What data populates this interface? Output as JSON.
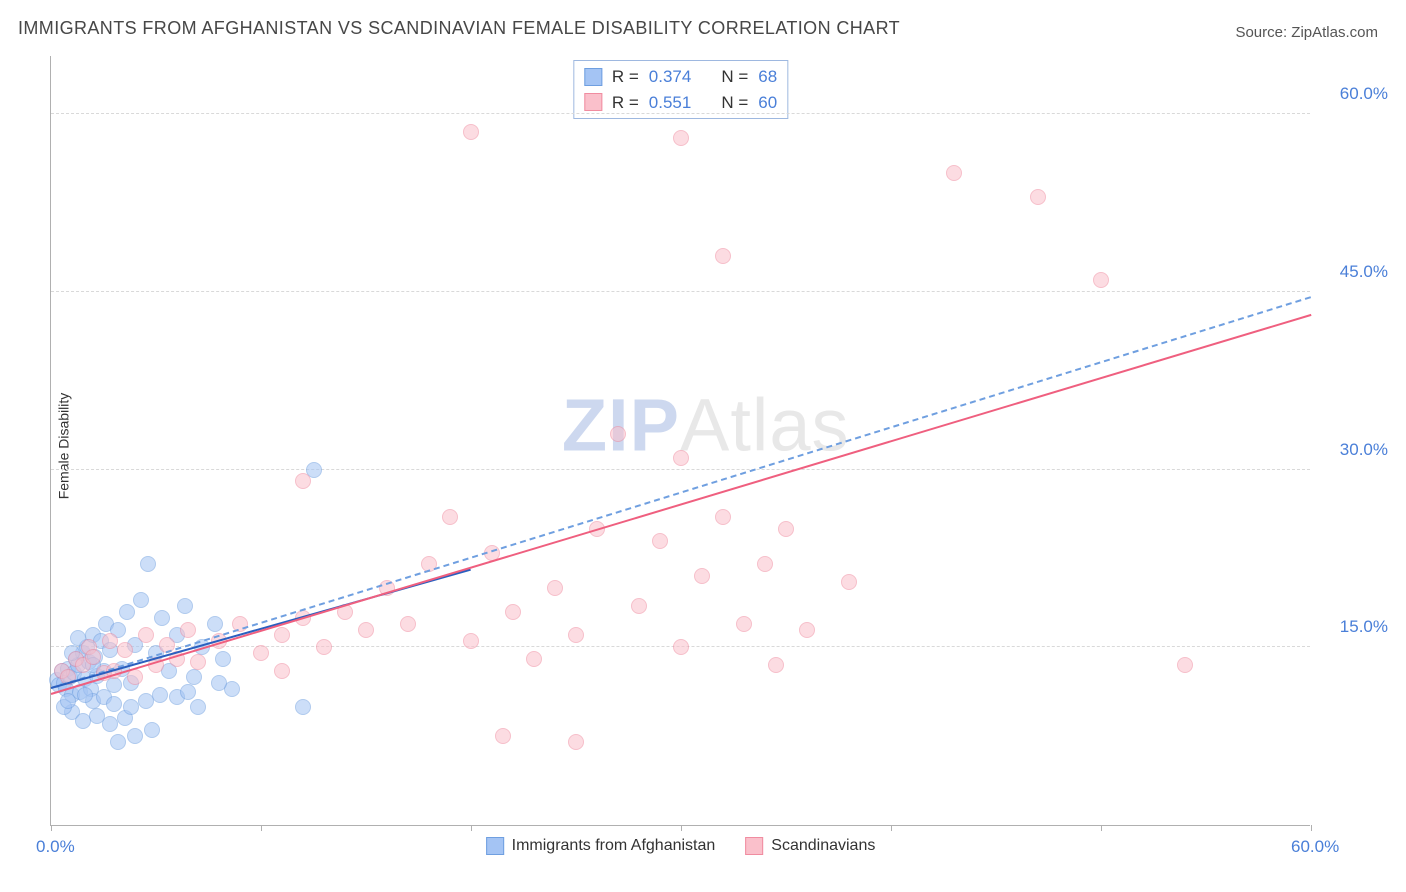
{
  "title": "IMMIGRANTS FROM AFGHANISTAN VS SCANDINAVIAN FEMALE DISABILITY CORRELATION CHART",
  "source_label": "Source: ZipAtlas.com",
  "watermark": {
    "part1": "ZIP",
    "part2": "Atlas"
  },
  "chart": {
    "type": "scatter",
    "ylabel": "Female Disability",
    "xlim": [
      0,
      60
    ],
    "ylim": [
      0,
      65
    ],
    "yticks": [
      15,
      30,
      45,
      60
    ],
    "ytick_labels": [
      "15.0%",
      "30.0%",
      "45.0%",
      "60.0%"
    ],
    "xticks": [
      0,
      10,
      20,
      30,
      40,
      50,
      60
    ],
    "xtick_labels_shown": {
      "0": "0.0%",
      "60": "60.0%"
    },
    "grid_color": "#d9d9d9",
    "axis_color": "#b0b0b0",
    "background_color": "#ffffff",
    "tick_label_color": "#4a7fd8",
    "tick_label_fontsize": 17,
    "ylabel_fontsize": 14,
    "marker_size": 16,
    "marker_opacity": 0.55,
    "series": [
      {
        "name": "Immigrants from Afghanistan",
        "fill_color": "#a4c4f4",
        "stroke_color": "#6f9fe0",
        "trend_color": "#2a5fbf",
        "trend_dashed_color": "#6f9fe0",
        "R": 0.374,
        "N": 68,
        "trend_x": [
          0,
          20
        ],
        "trend_y": [
          11.5,
          21.5
        ],
        "trend_dashed_x": [
          0,
          60
        ],
        "trend_dashed_y": [
          11.5,
          44.5
        ],
        "points": [
          [
            0.3,
            12.2
          ],
          [
            0.4,
            11.8
          ],
          [
            0.5,
            13.0
          ],
          [
            0.6,
            12.0
          ],
          [
            0.7,
            11.5
          ],
          [
            0.8,
            13.2
          ],
          [
            0.9,
            12.5
          ],
          [
            1.0,
            11.0
          ],
          [
            1.1,
            12.8
          ],
          [
            1.2,
            14.0
          ],
          [
            1.3,
            13.5
          ],
          [
            1.4,
            11.2
          ],
          [
            1.5,
            14.5
          ],
          [
            1.6,
            12.3
          ],
          [
            1.7,
            15.0
          ],
          [
            1.8,
            13.8
          ],
          [
            1.9,
            11.5
          ],
          [
            2.0,
            16.0
          ],
          [
            2.1,
            14.2
          ],
          [
            2.2,
            12.6
          ],
          [
            2.4,
            15.5
          ],
          [
            2.5,
            13.0
          ],
          [
            2.6,
            17.0
          ],
          [
            2.8,
            14.8
          ],
          [
            3.0,
            11.8
          ],
          [
            3.2,
            16.5
          ],
          [
            3.4,
            13.2
          ],
          [
            3.6,
            18.0
          ],
          [
            3.8,
            12.0
          ],
          [
            4.0,
            15.2
          ],
          [
            4.3,
            19.0
          ],
          [
            4.6,
            22.0
          ],
          [
            5.0,
            14.5
          ],
          [
            5.3,
            17.5
          ],
          [
            5.6,
            13.0
          ],
          [
            6.0,
            16.0
          ],
          [
            6.4,
            18.5
          ],
          [
            6.8,
            12.5
          ],
          [
            7.2,
            15.0
          ],
          [
            7.8,
            17.0
          ],
          [
            8.2,
            14.0
          ],
          [
            8.6,
            11.5
          ],
          [
            1.0,
            9.5
          ],
          [
            1.5,
            8.8
          ],
          [
            2.2,
            9.2
          ],
          [
            2.8,
            8.5
          ],
          [
            3.5,
            9.0
          ],
          [
            3.2,
            7.0
          ],
          [
            4.0,
            7.5
          ],
          [
            4.8,
            8.0
          ],
          [
            2.0,
            10.5
          ],
          [
            2.5,
            10.8
          ],
          [
            3.0,
            10.2
          ],
          [
            3.8,
            10.0
          ],
          [
            4.5,
            10.5
          ],
          [
            5.2,
            11.0
          ],
          [
            6.0,
            10.8
          ],
          [
            6.5,
            11.2
          ],
          [
            7.0,
            10.0
          ],
          [
            8.0,
            12.0
          ],
          [
            12.5,
            30.0
          ],
          [
            12.0,
            10.0
          ],
          [
            0.6,
            10.0
          ],
          [
            0.8,
            10.5
          ],
          [
            1.0,
            14.5
          ],
          [
            1.3,
            15.8
          ],
          [
            1.6,
            11.0
          ],
          [
            2.0,
            13.5
          ]
        ]
      },
      {
        "name": "Scandinavians",
        "fill_color": "#fac0cb",
        "stroke_color": "#f08ca0",
        "trend_color": "#ef5f7f",
        "R": 0.551,
        "N": 60,
        "trend_x": [
          0,
          60
        ],
        "trend_y": [
          11.0,
          43.0
        ],
        "points": [
          [
            0.5,
            13.0
          ],
          [
            0.8,
            12.5
          ],
          [
            1.2,
            14.0
          ],
          [
            1.5,
            13.5
          ],
          [
            1.8,
            15.0
          ],
          [
            2.0,
            14.2
          ],
          [
            2.5,
            12.8
          ],
          [
            2.8,
            15.5
          ],
          [
            3.0,
            13.0
          ],
          [
            3.5,
            14.8
          ],
          [
            4.0,
            12.5
          ],
          [
            4.5,
            16.0
          ],
          [
            5.0,
            13.5
          ],
          [
            5.5,
            15.2
          ],
          [
            6.0,
            14.0
          ],
          [
            6.5,
            16.5
          ],
          [
            7.0,
            13.8
          ],
          [
            8.0,
            15.5
          ],
          [
            9.0,
            17.0
          ],
          [
            10.0,
            14.5
          ],
          [
            11.0,
            16.0
          ],
          [
            11.0,
            13.0
          ],
          [
            12.0,
            17.5
          ],
          [
            12.0,
            29.0
          ],
          [
            13.0,
            15.0
          ],
          [
            14.0,
            18.0
          ],
          [
            15.0,
            16.5
          ],
          [
            16.0,
            20.0
          ],
          [
            17.0,
            17.0
          ],
          [
            18.0,
            22.0
          ],
          [
            19.0,
            26.0
          ],
          [
            20.0,
            15.5
          ],
          [
            21.0,
            23.0
          ],
          [
            21.5,
            7.5
          ],
          [
            22.0,
            18.0
          ],
          [
            23.0,
            14.0
          ],
          [
            24.0,
            20.0
          ],
          [
            25.0,
            16.0
          ],
          [
            25.0,
            7.0
          ],
          [
            26.0,
            25.0
          ],
          [
            27.0,
            33.0
          ],
          [
            28.0,
            18.5
          ],
          [
            29.0,
            24.0
          ],
          [
            30.0,
            15.0
          ],
          [
            30.0,
            31.0
          ],
          [
            31.0,
            21.0
          ],
          [
            32.0,
            26.0
          ],
          [
            32.0,
            48.0
          ],
          [
            33.0,
            17.0
          ],
          [
            34.0,
            22.0
          ],
          [
            34.5,
            13.5
          ],
          [
            35.0,
            25.0
          ],
          [
            36.0,
            16.5
          ],
          [
            38.0,
            20.5
          ],
          [
            30.0,
            58.0
          ],
          [
            20.0,
            58.5
          ],
          [
            43.0,
            55.0
          ],
          [
            47.0,
            53.0
          ],
          [
            50.0,
            46.0
          ],
          [
            54.0,
            13.5
          ]
        ]
      }
    ],
    "legend_top": {
      "rows": [
        {
          "swatch_fill": "#a4c4f4",
          "swatch_stroke": "#6f9fe0",
          "r_label": "R =",
          "r_val": "0.374",
          "n_label": "N =",
          "n_val": "68"
        },
        {
          "swatch_fill": "#fac0cb",
          "swatch_stroke": "#f08ca0",
          "r_label": "R =",
          "r_val": "0.551",
          "n_label": "N =",
          "n_val": "60"
        }
      ],
      "value_color": "#4a7fd8"
    },
    "legend_bottom": [
      {
        "swatch_fill": "#a4c4f4",
        "swatch_stroke": "#6f9fe0",
        "label": "Immigrants from Afghanistan"
      },
      {
        "swatch_fill": "#fac0cb",
        "swatch_stroke": "#f08ca0",
        "label": "Scandinavians"
      }
    ]
  }
}
